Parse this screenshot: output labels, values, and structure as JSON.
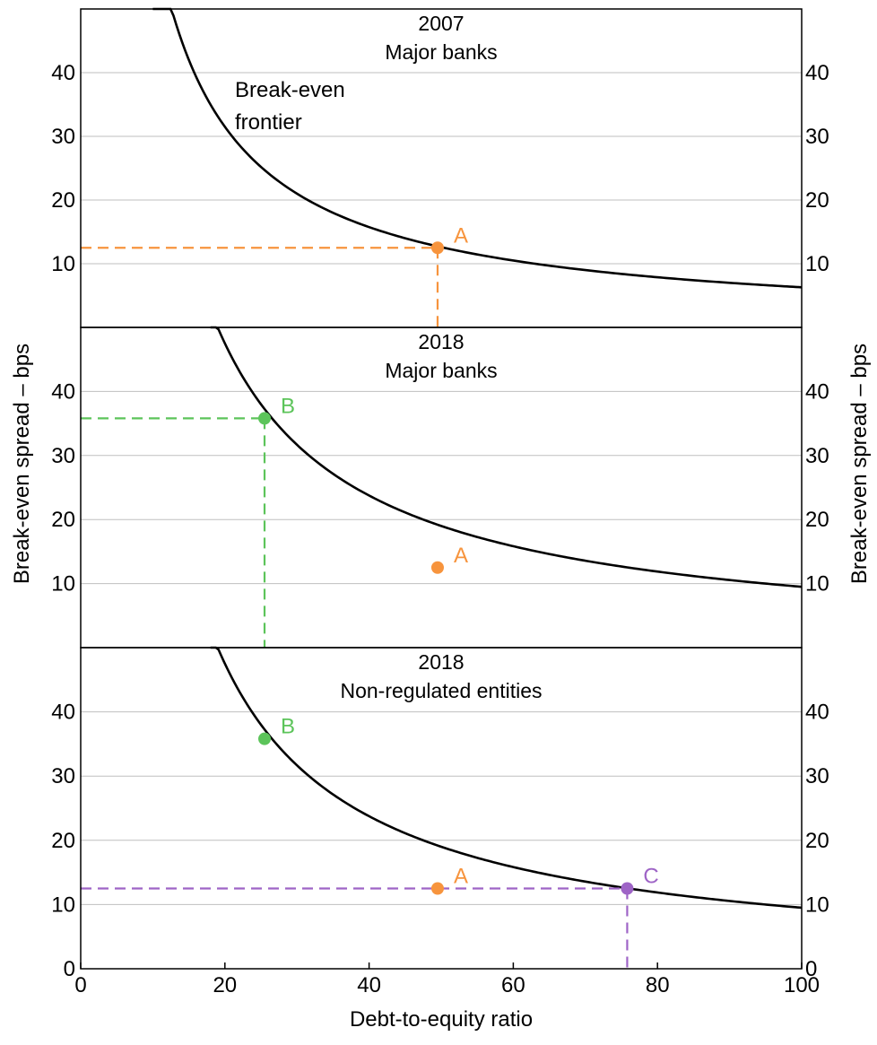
{
  "chart_data": {
    "type": "line",
    "xlabel": "Debt-to-equity ratio",
    "ylabel_left": "Break-even spread – bps",
    "ylabel_right": "Break-even spread – bps",
    "xlim": [
      0,
      100
    ],
    "x_ticks": [
      0,
      20,
      40,
      60,
      80,
      100
    ],
    "x_tick_labels": [
      "0",
      "20",
      "40",
      "60",
      "80",
      "100"
    ],
    "grid": "horizontal",
    "colors": {
      "curve": "#000000",
      "A": "#F7943D",
      "B": "#5CC45A",
      "C": "#9E64C6",
      "grid": "#BFBFBF"
    },
    "panels": [
      {
        "title": "2007",
        "subtitle": "Major banks",
        "ylim": [
          0,
          50
        ],
        "y_ticks": [
          10,
          20,
          30,
          40
        ],
        "y_tick_labels": [
          "10",
          "20",
          "30",
          "40"
        ],
        "annotation": "Break-even frontier",
        "annotation_lines": [
          "Break-even",
          "frontier"
        ],
        "frontier": {
          "name": "Break-even frontier",
          "constant": 630,
          "x_start": 10,
          "x_end": 100
        },
        "points": [
          {
            "label": "A",
            "x": 49.5,
            "y": 12.5,
            "color_key": "A",
            "dashed_guides": true
          }
        ]
      },
      {
        "title": "2018",
        "subtitle": "Major banks",
        "ylim": [
          0,
          50
        ],
        "y_ticks": [
          10,
          20,
          30,
          40
        ],
        "y_tick_labels": [
          "10",
          "20",
          "30",
          "40"
        ],
        "frontier": {
          "name": "Break-even frontier",
          "constant": 950,
          "x_start": 18,
          "x_end": 100
        },
        "points": [
          {
            "label": "B",
            "x": 25.5,
            "y": 35.8,
            "color_key": "B",
            "dashed_guides": true
          },
          {
            "label": "A",
            "x": 49.5,
            "y": 12.5,
            "color_key": "A",
            "dashed_guides": false
          }
        ]
      },
      {
        "title": "2018",
        "subtitle": "Non-regulated entities",
        "ylim": [
          0,
          50
        ],
        "y_ticks": [
          0,
          10,
          20,
          30,
          40
        ],
        "y_tick_labels": [
          "0",
          "10",
          "20",
          "30",
          "40"
        ],
        "frontier": {
          "name": "Break-even frontier",
          "constant": 950,
          "x_start": 18,
          "x_end": 100
        },
        "points": [
          {
            "label": "B",
            "x": 25.5,
            "y": 35.8,
            "color_key": "B",
            "dashed_guides": false
          },
          {
            "label": "A",
            "x": 49.5,
            "y": 12.5,
            "color_key": "A",
            "dashed_guides": false
          },
          {
            "label": "C",
            "x": 75.8,
            "y": 12.5,
            "color_key": "C",
            "dashed_guides": true
          }
        ]
      }
    ]
  }
}
